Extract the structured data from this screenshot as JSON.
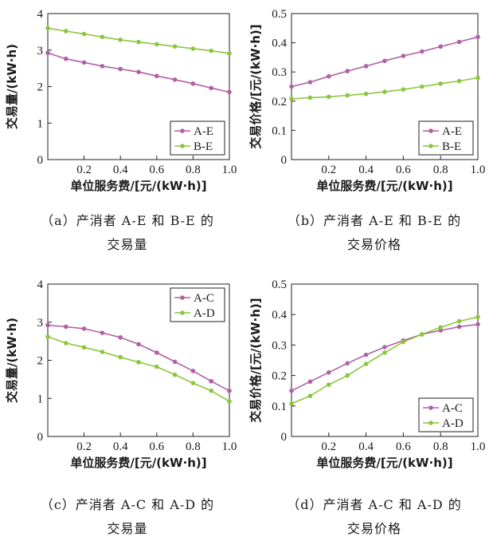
{
  "chart_data": [
    {
      "type": "line",
      "x": [
        0,
        0.1,
        0.2,
        0.3,
        0.4,
        0.5,
        0.6,
        0.7,
        0.8,
        0.9,
        1.0
      ],
      "series": [
        {
          "name": "A-E",
          "values": [
            2.92,
            2.76,
            2.66,
            2.56,
            2.48,
            2.4,
            2.29,
            2.19,
            2.08,
            1.96,
            1.85
          ]
        },
        {
          "name": "B-E",
          "values": [
            3.6,
            3.52,
            3.44,
            3.36,
            3.28,
            3.22,
            3.16,
            3.1,
            3.04,
            2.98,
            2.91
          ]
        }
      ],
      "xlabel": "单位服务费/[元/(kW·h)]",
      "ylabel": "交易量/(kW·h)",
      "xlim": [
        0,
        1.0
      ],
      "ylim": [
        0,
        4
      ],
      "xticks": [
        "0.2",
        "0.4",
        "0.6",
        "0.8",
        "1.0"
      ],
      "yticks": [
        "0",
        "1",
        "2",
        "3",
        "4"
      ],
      "legend": "bottom-right",
      "caption_line1": "（a）产消者 A-E 和 B-E 的",
      "caption_line2": "交易量"
    },
    {
      "type": "line",
      "x": [
        0,
        0.1,
        0.2,
        0.3,
        0.4,
        0.5,
        0.6,
        0.7,
        0.8,
        0.9,
        1.0
      ],
      "series": [
        {
          "name": "A-E",
          "values": [
            0.25,
            0.265,
            0.285,
            0.303,
            0.32,
            0.338,
            0.355,
            0.37,
            0.387,
            0.403,
            0.42
          ]
        },
        {
          "name": "B-E",
          "values": [
            0.208,
            0.212,
            0.215,
            0.22,
            0.225,
            0.232,
            0.24,
            0.25,
            0.26,
            0.269,
            0.28
          ]
        }
      ],
      "xlabel": "单位服务费/[元/(kW·h)]",
      "ylabel": "交易价格/[元/(kW·h)]",
      "xlim": [
        0,
        1.0
      ],
      "ylim": [
        0,
        0.5
      ],
      "xticks": [
        "0.2",
        "0.4",
        "0.6",
        "0.8",
        "1.0"
      ],
      "yticks": [
        "0",
        "0.1",
        "0.2",
        "0.3",
        "0.4",
        "0.5"
      ],
      "legend": "bottom-right",
      "caption_line1": "（b）产消者 A-E 和 B-E 的",
      "caption_line2": "交易价格"
    },
    {
      "type": "line",
      "x": [
        0,
        0.1,
        0.2,
        0.3,
        0.4,
        0.5,
        0.6,
        0.7,
        0.8,
        0.9,
        1.0
      ],
      "series": [
        {
          "name": "A-C",
          "values": [
            2.92,
            2.88,
            2.83,
            2.72,
            2.6,
            2.42,
            2.2,
            1.96,
            1.72,
            1.45,
            1.2
          ]
        },
        {
          "name": "A-D",
          "values": [
            2.62,
            2.45,
            2.34,
            2.22,
            2.08,
            1.95,
            1.83,
            1.62,
            1.4,
            1.2,
            0.92
          ]
        }
      ],
      "xlabel": "单位服务费/[元/(kW·h)]",
      "ylabel": "交易量/(kW·h)",
      "xlim": [
        0,
        1.0
      ],
      "ylim": [
        0,
        4
      ],
      "xticks": [
        "0.2",
        "0.4",
        "0.6",
        "0.8",
        "1.0"
      ],
      "yticks": [
        "0",
        "1",
        "2",
        "3",
        "4"
      ],
      "legend": "top-right",
      "caption_line1": "（c）产消者 A-C 和 A-D 的",
      "caption_line2": "交易量"
    },
    {
      "type": "line",
      "x": [
        0,
        0.1,
        0.2,
        0.3,
        0.4,
        0.5,
        0.6,
        0.7,
        0.8,
        0.9,
        1.0
      ],
      "series": [
        {
          "name": "A-C",
          "values": [
            0.15,
            0.18,
            0.21,
            0.24,
            0.268,
            0.293,
            0.315,
            0.335,
            0.348,
            0.36,
            0.368
          ]
        },
        {
          "name": "A-D",
          "values": [
            0.108,
            0.133,
            0.17,
            0.2,
            0.238,
            0.275,
            0.31,
            0.335,
            0.358,
            0.378,
            0.392
          ]
        }
      ],
      "xlabel": "单位服务费/[元/(kW·h)]",
      "ylabel": "交易价格/[元/(kW·h)]",
      "xlim": [
        0,
        1.0
      ],
      "ylim": [
        0,
        0.5
      ],
      "xticks": [
        "0.2",
        "0.4",
        "0.6",
        "0.8",
        "1.0"
      ],
      "yticks": [
        "0",
        "0.1",
        "0.2",
        "0.3",
        "0.4",
        "0.5"
      ],
      "legend": "bottom-right",
      "caption_line1": "（d）产消者 A-C 和 A-D 的",
      "caption_line2": "交易价格"
    }
  ],
  "colors": {
    "series_1": "#b061a6",
    "series_2": "#8cc63f",
    "axis": "#222222"
  }
}
